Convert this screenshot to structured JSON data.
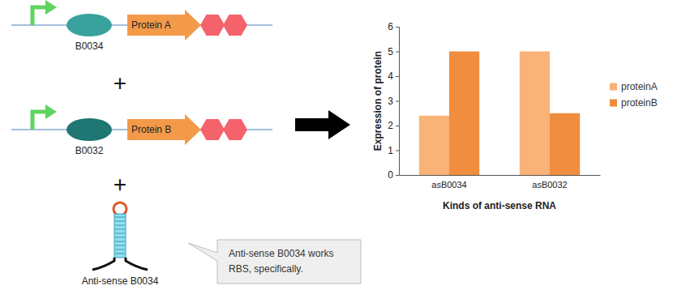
{
  "diagram": {
    "construct_a": {
      "rbs": "B0034",
      "protein": "Protein A"
    },
    "plus_1": "+",
    "construct_b": {
      "rbs": "B0032",
      "protein": "Protein B"
    },
    "plus_2": "+",
    "antisense": {
      "label": "Anti-sense B0034"
    },
    "callout": [
      "Anti-sense B0034 works",
      "RBS, specifically."
    ]
  },
  "chart_data": {
    "type": "bar",
    "categories": [
      "asB0034",
      "asB0032"
    ],
    "series": [
      {
        "name": "proteinA",
        "color": "#f9b278",
        "values": [
          2.4,
          5.0
        ]
      },
      {
        "name": "proteinB",
        "color": "#f08d3e",
        "values": [
          5.0,
          2.5
        ]
      }
    ],
    "x_label": "Kinds of anti-sense RNA",
    "y_label": "Expression of protein",
    "ylim": [
      0,
      6
    ],
    "yticks": [
      0,
      1,
      2,
      3,
      4,
      5,
      6
    ],
    "grid": false,
    "legend": "right"
  }
}
